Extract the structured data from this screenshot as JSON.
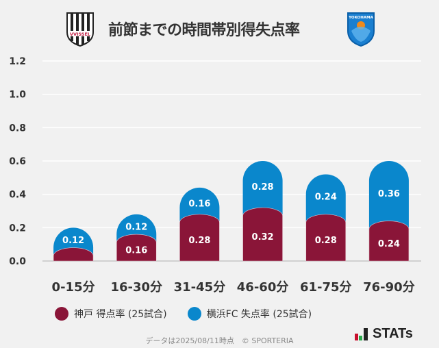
{
  "title": "前節までの時間帯別得失点率",
  "logos": {
    "left": "VISSEL",
    "right": "YOKOHAMA FC"
  },
  "colors": {
    "kobe": "#8a1538",
    "yokohama": "#0a87cc",
    "background": "#f1f1f1"
  },
  "chart_data": {
    "type": "bar",
    "stacked": true,
    "title": "前節までの時間帯別得失点率",
    "categories": [
      "0-15分",
      "16-30分",
      "31-45分",
      "46-60分",
      "61-75分",
      "76-90分"
    ],
    "series": [
      {
        "name": "神戸 得点率 (25試合)",
        "values": [
          0.08,
          0.16,
          0.28,
          0.32,
          0.28,
          0.24
        ],
        "labels": [
          "",
          "0.16",
          "0.28",
          "0.32",
          "0.28",
          "0.24"
        ]
      },
      {
        "name": "横浜FC 失点率 (25試合)",
        "values": [
          0.12,
          0.12,
          0.16,
          0.28,
          0.24,
          0.36
        ],
        "labels": [
          "0.12",
          "0.12",
          "0.16",
          "0.28",
          "0.24",
          "0.36"
        ]
      }
    ],
    "yticks": [
      "0.0",
      "0.2",
      "0.4",
      "0.6",
      "0.8",
      "1.0",
      "1.2"
    ],
    "ylim": [
      0,
      1.2
    ],
    "grid": true,
    "legend": "bottom"
  },
  "legend": {
    "kobe": "神戸 得点率 (25試合)",
    "yokohama": "横浜FC 失点率 (25試合)"
  },
  "footer": "データは2025/08/11時点　© SPORTERIA",
  "brand": "STATs"
}
